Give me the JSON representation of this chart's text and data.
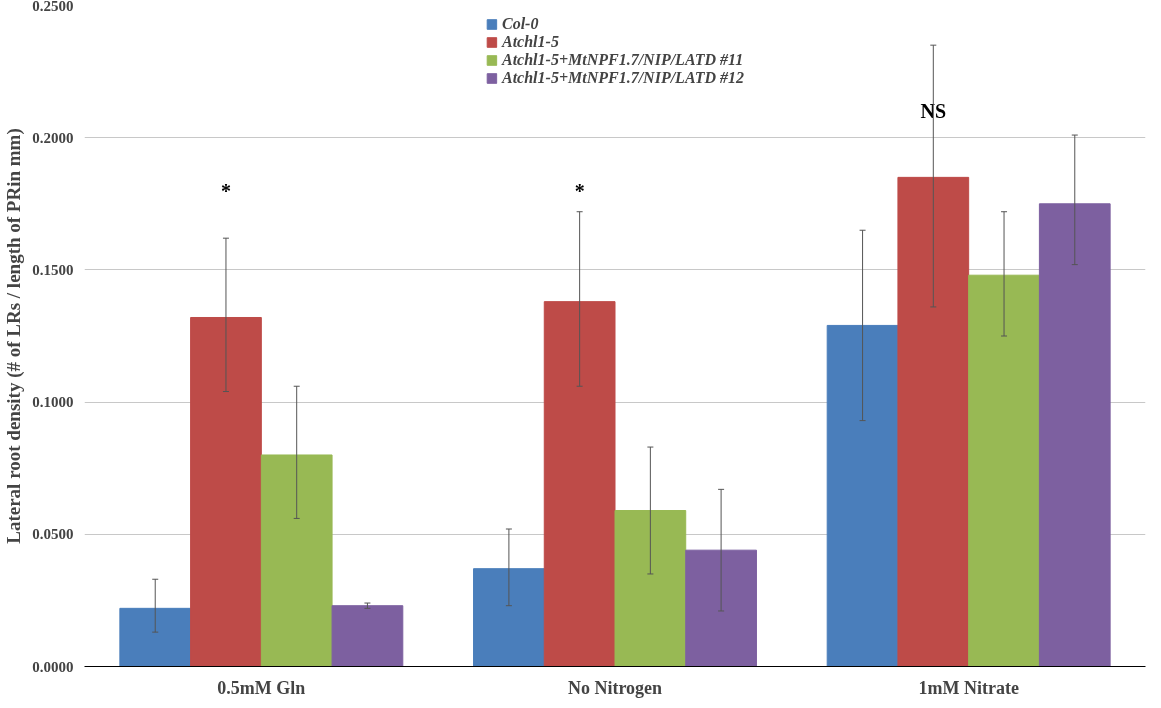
{
  "chart_data": {
    "type": "bar",
    "ylabel": "Lateral root density (# of LRs / length of PRin mm)",
    "categories": [
      "0.5mM Gln",
      "No Nitrogen",
      "1mM Nitrate"
    ],
    "series": [
      {
        "name": "Col-0",
        "color": "#4a7ebb",
        "values": [
          0.022,
          0.037,
          0.129
        ],
        "errors": [
          [
            0.013,
            0.033
          ],
          [
            0.023,
            0.052
          ],
          [
            0.093,
            0.165
          ]
        ]
      },
      {
        "name": "Atchl1-5",
        "color": "#be4b48",
        "values": [
          0.132,
          0.138,
          0.185
        ],
        "errors": [
          [
            0.104,
            0.162
          ],
          [
            0.106,
            0.172
          ],
          [
            0.136,
            0.235
          ]
        ]
      },
      {
        "name": "Atchl1-5+MtNPF1.7/NIP/LATD #11",
        "color": "#98b954",
        "values": [
          0.08,
          0.059,
          0.148
        ],
        "errors": [
          [
            0.056,
            0.106
          ],
          [
            0.035,
            0.083
          ],
          [
            0.125,
            0.172
          ]
        ]
      },
      {
        "name": "Atchl1-5+MtNPF1.7/NIP/LATD #12",
        "color": "#7d60a0",
        "values": [
          0.023,
          0.044,
          0.175
        ],
        "errors": [
          [
            0.022,
            0.024
          ],
          [
            0.021,
            0.067
          ],
          [
            0.152,
            0.201
          ]
        ]
      }
    ],
    "ylim": [
      0,
      0.25
    ],
    "yticks": [
      {
        "value": 0,
        "label": "0.0000"
      },
      {
        "value": 0.05,
        "label": "0.0500"
      },
      {
        "value": 0.1,
        "label": "0.1000"
      },
      {
        "value": 0.15,
        "label": "0.1500"
      },
      {
        "value": 0.2,
        "label": "0.2000"
      },
      {
        "value": 0.25,
        "label": "0.2500"
      }
    ],
    "annotations": [
      "*",
      "*",
      "NS"
    ],
    "grid": "y",
    "legend": "top"
  }
}
